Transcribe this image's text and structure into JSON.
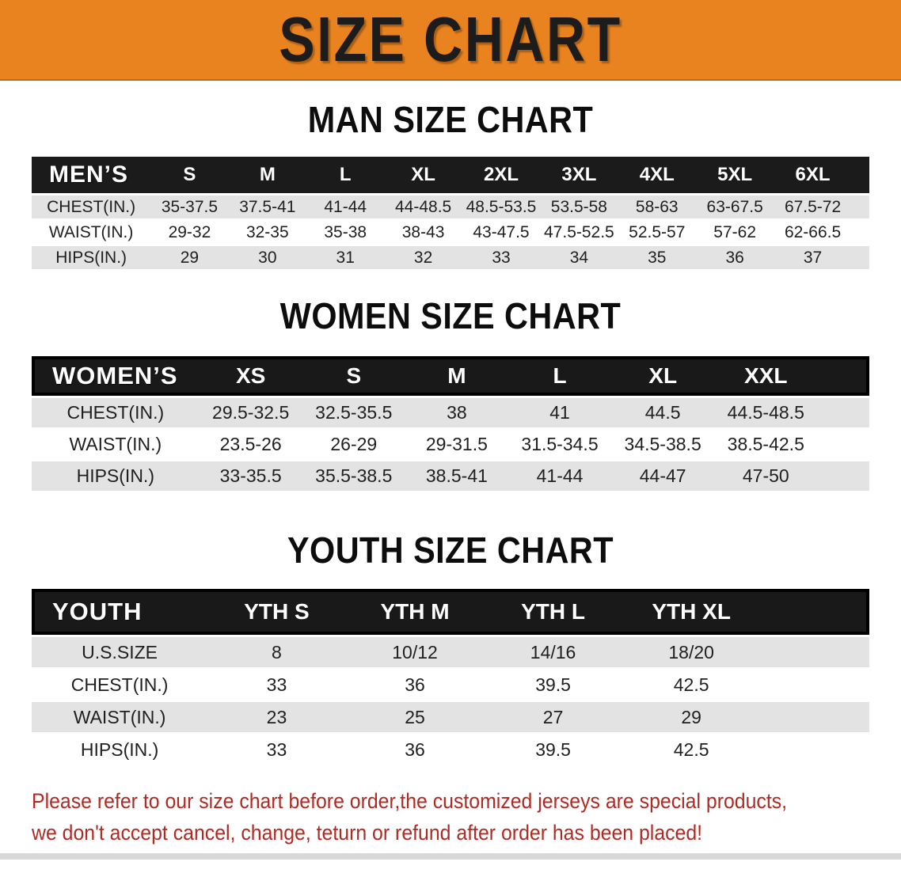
{
  "banner": {
    "title": "SIZE CHART"
  },
  "colors": {
    "banner_bg": "#E8831F",
    "header_bg": "#1B1B1B",
    "header_border": "#000000",
    "stripe": "#E3E3E3",
    "note_text": "#B02A23"
  },
  "sections": [
    {
      "title": "MAN SIZE CHART",
      "table": {
        "header_label": "MEN’S",
        "columns": [
          "S",
          "M",
          "L",
          "XL",
          "2XL",
          "3XL",
          "4XL",
          "5XL",
          "6XL"
        ],
        "rows": [
          {
            "label": "CHEST(IN.)",
            "values": [
              "35-37.5",
              "37.5-41",
              "41-44",
              "44-48.5",
              "48.5-53.5",
              "53.5-58",
              "58-63",
              "63-67.5",
              "67.5-72"
            ]
          },
          {
            "label": "WAIST(IN.)",
            "values": [
              "29-32",
              "32-35",
              "35-38",
              "38-43",
              "43-47.5",
              "47.5-52.5",
              "52.5-57",
              "57-62",
              "62-66.5"
            ]
          },
          {
            "label": "HIPS(IN.)",
            "values": [
              "29",
              "30",
              "31",
              "32",
              "33",
              "34",
              "35",
              "36",
              "37"
            ]
          }
        ]
      }
    },
    {
      "title": "WOMEN SIZE CHART",
      "table": {
        "header_label": "WOMEN’S",
        "columns": [
          "XS",
          "S",
          "M",
          "L",
          "XL",
          "XXL"
        ],
        "rows": [
          {
            "label": "CHEST(IN.)",
            "values": [
              "29.5-32.5",
              "32.5-35.5",
              "38",
              "41",
              "44.5",
              "44.5-48.5"
            ]
          },
          {
            "label": "WAIST(IN.)",
            "values": [
              "23.5-26",
              "26-29",
              "29-31.5",
              "31.5-34.5",
              "34.5-38.5",
              "38.5-42.5"
            ]
          },
          {
            "label": "HIPS(IN.)",
            "values": [
              "33-35.5",
              "35.5-38.5",
              "38.5-41",
              "41-44",
              "44-47",
              "47-50"
            ]
          }
        ]
      }
    },
    {
      "title": "YOUTH SIZE CHART",
      "table": {
        "header_label": "YOUTH",
        "columns": [
          "YTH S",
          "YTH M",
          "YTH L",
          "YTH XL"
        ],
        "rows": [
          {
            "label": "U.S.SIZE",
            "values": [
              "8",
              "10/12",
              "14/16",
              "18/20"
            ]
          },
          {
            "label": "CHEST(IN.)",
            "values": [
              "33",
              "36",
              "39.5",
              "42.5"
            ]
          },
          {
            "label": "WAIST(IN.)",
            "values": [
              "23",
              "25",
              "27",
              "29"
            ]
          },
          {
            "label": "HIPS(IN.)",
            "values": [
              "33",
              "36",
              "39.5",
              "42.5"
            ]
          }
        ]
      }
    }
  ],
  "footer": {
    "line1": "Please refer to our size chart before order,the customized jerseys are special products,",
    "line2": "we don't accept cancel, change, teturn or refund after order has been placed!"
  }
}
